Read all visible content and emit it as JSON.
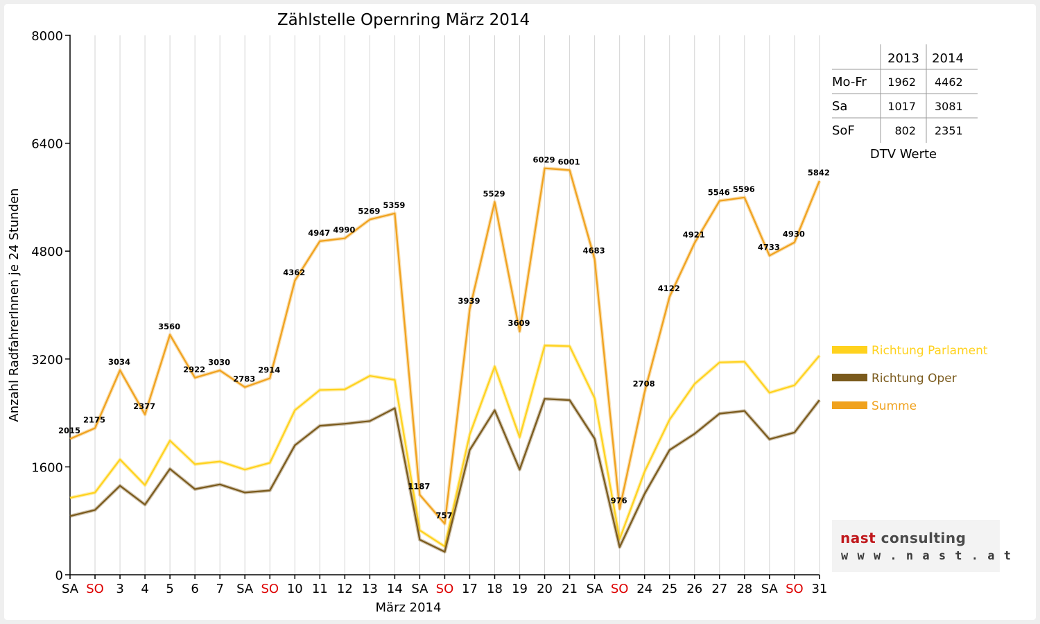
{
  "chart_data": {
    "type": "line",
    "title": "Zählstelle Opernring März 2014",
    "xlabel": "März 2014",
    "ylabel": "Anzahl RadfahrerInnen je 24 Stunden",
    "ylim": [
      0,
      8000
    ],
    "yticks": [
      "0",
      "1600",
      "3200",
      "4800",
      "6400",
      "8000"
    ],
    "grid": "vertical",
    "legend_placement": "right",
    "categories": [
      "SA",
      "SO",
      "3",
      "4",
      "5",
      "6",
      "7",
      "SA",
      "SO",
      "10",
      "11",
      "12",
      "13",
      "14",
      "SA",
      "SO",
      "17",
      "18",
      "19",
      "20",
      "21",
      "SA",
      "SO",
      "24",
      "25",
      "26",
      "27",
      "28",
      "SA",
      "SO",
      "31"
    ],
    "category_is_sunday": [
      false,
      true,
      false,
      false,
      false,
      false,
      false,
      false,
      true,
      false,
      false,
      false,
      false,
      false,
      false,
      true,
      false,
      false,
      false,
      false,
      false,
      false,
      true,
      false,
      false,
      false,
      false,
      false,
      false,
      true,
      false
    ],
    "series": [
      {
        "name": "Richtung Parlament",
        "color": "#ffd21e",
        "values": [
          1140,
          1220,
          1710,
          1330,
          1990,
          1640,
          1680,
          1560,
          1660,
          2440,
          2740,
          2750,
          2950,
          2890,
          660,
          420,
          2080,
          3090,
          2040,
          3400,
          3390,
          2620,
          530,
          1530,
          2300,
          2830,
          3150,
          3160,
          2700,
          2810,
          3250
        ]
      },
      {
        "name": "Richtung Oper",
        "color": "#7a5a1c",
        "values": [
          870,
          960,
          1320,
          1040,
          1570,
          1270,
          1340,
          1220,
          1250,
          1920,
          2210,
          2240,
          2280,
          2470,
          520,
          340,
          1850,
          2440,
          1560,
          2610,
          2590,
          2020,
          410,
          1200,
          1850,
          2090,
          2390,
          2430,
          2010,
          2110,
          2590
        ]
      },
      {
        "name": "Summe",
        "color": "#f0a21e",
        "values": [
          2015,
          2175,
          3034,
          2377,
          3560,
          2922,
          3030,
          2783,
          2914,
          4362,
          4947,
          4990,
          5269,
          5359,
          1187,
          757,
          3939,
          5529,
          3609,
          6029,
          6001,
          4683,
          976,
          2708,
          4122,
          4921,
          5546,
          5596,
          4733,
          4930,
          5842
        ],
        "data_labels": [
          "2015",
          "2175",
          "3034",
          "2377",
          "3560",
          "2922",
          "3030",
          "2783",
          "2914",
          "4362",
          "4947",
          "4990",
          "5269",
          "5359",
          "1187",
          "757",
          "3939",
          "5529",
          "3609",
          "6029",
          "6001",
          "4683",
          "976",
          "2708",
          "4122",
          "4921",
          "5546",
          "5596",
          "4733",
          "4930",
          "5842"
        ]
      }
    ]
  },
  "dtv_table": {
    "headers": [
      "",
      "2013",
      "2014"
    ],
    "rows": [
      {
        "label": "Mo-Fr",
        "v2013": "1962",
        "v2014": "4462"
      },
      {
        "label": "Sa",
        "v2013": "1017",
        "v2014": "3081"
      },
      {
        "label": "SoF",
        "v2013": "802",
        "v2014": "2351"
      }
    ],
    "caption": "DTV Werte"
  },
  "logo": {
    "name_part1": "nast",
    "name_part2": " consulting",
    "url": "www.nast.at"
  },
  "colors": {
    "sunday_label": "#dd0000",
    "weekday_label": "#000000",
    "grid": "#d4d4d4"
  }
}
